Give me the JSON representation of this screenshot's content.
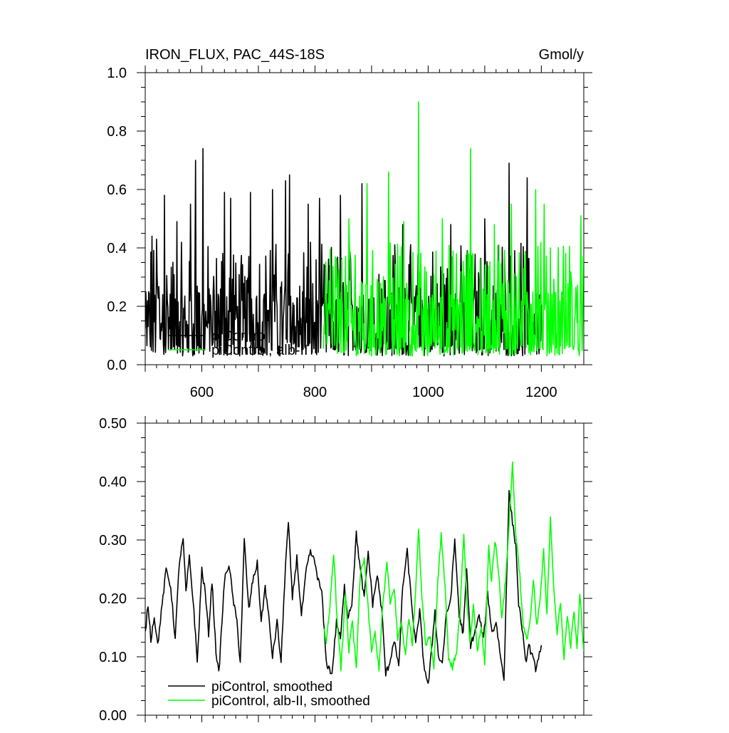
{
  "chart_data": [
    {
      "type": "line",
      "title": "IRON_FLUX, PAC_44S-18S",
      "units": "Gmol/y",
      "xlim": [
        500,
        1275
      ],
      "ylim": [
        0.0,
        1.0
      ],
      "x_ticks": [
        600,
        800,
        1000,
        1200
      ],
      "x_tick_labels": [
        "600",
        "800",
        "1000",
        "1200"
      ],
      "y_ticks": [
        0.0,
        0.2,
        0.4,
        0.6,
        0.8,
        1.0
      ],
      "y_tick_labels": [
        "0.0",
        "0.2",
        "0.4",
        "0.6",
        "0.8",
        "1.0"
      ],
      "grid": false,
      "legend_position": "bottom-left",
      "colors": {
        "piControl": "#000000",
        "alb-II": "#00ff00"
      },
      "series": [
        {
          "name": "piControl",
          "color": "#000000",
          "x_range": [
            500,
            1200
          ],
          "min": 0.03,
          "max": 0.74,
          "peaks": [
            {
              "x": 506,
              "y": 0.25
            },
            {
              "x": 512,
              "y": 0.44
            },
            {
              "x": 520,
              "y": 0.43
            },
            {
              "x": 534,
              "y": 0.58
            },
            {
              "x": 556,
              "y": 0.49
            },
            {
              "x": 580,
              "y": 0.55
            },
            {
              "x": 589,
              "y": 0.7
            },
            {
              "x": 602,
              "y": 0.74
            },
            {
              "x": 640,
              "y": 0.59
            },
            {
              "x": 651,
              "y": 0.57
            },
            {
              "x": 686,
              "y": 0.59
            },
            {
              "x": 725,
              "y": 0.6
            },
            {
              "x": 748,
              "y": 0.63
            },
            {
              "x": 755,
              "y": 0.65
            },
            {
              "x": 788,
              "y": 0.55
            },
            {
              "x": 808,
              "y": 0.57
            },
            {
              "x": 845,
              "y": 0.58
            },
            {
              "x": 883,
              "y": 0.62
            },
            {
              "x": 955,
              "y": 0.48
            },
            {
              "x": 1040,
              "y": 0.48
            },
            {
              "x": 1100,
              "y": 0.5
            },
            {
              "x": 1143,
              "y": 0.69
            },
            {
              "x": 1175,
              "y": 0.64
            }
          ]
        },
        {
          "name": "piControl, alb-II",
          "color": "#00ff00",
          "x_range": [
            815,
            1275
          ],
          "min": 0.03,
          "max": 0.9,
          "peaks": [
            {
              "x": 860,
              "y": 0.5
            },
            {
              "x": 892,
              "y": 0.62
            },
            {
              "x": 930,
              "y": 0.66
            },
            {
              "x": 957,
              "y": 0.49
            },
            {
              "x": 983,
              "y": 0.9
            },
            {
              "x": 1025,
              "y": 0.5
            },
            {
              "x": 1075,
              "y": 0.74
            },
            {
              "x": 1117,
              "y": 0.48
            },
            {
              "x": 1147,
              "y": 0.55
            },
            {
              "x": 1190,
              "y": 0.6
            },
            {
              "x": 1205,
              "y": 0.55
            },
            {
              "x": 1270,
              "y": 0.51
            }
          ]
        }
      ],
      "legend": [
        {
          "label": "piControl",
          "color": "#000000"
        },
        {
          "label": "piControl, alb-II",
          "color": "#00ff00"
        }
      ]
    },
    {
      "type": "line",
      "title": "",
      "xlim": [
        500,
        1275
      ],
      "ylim": [
        0.0,
        0.5
      ],
      "x_ticks": [
        600,
        800,
        1000,
        1200
      ],
      "y_ticks": [
        0.0,
        0.1,
        0.2,
        0.3,
        0.4,
        0.5
      ],
      "y_tick_labels": [
        "0.00",
        "0.10",
        "0.20",
        "0.30",
        "0.40",
        "0.50"
      ],
      "grid": false,
      "legend_position": "bottom-left",
      "series": [
        {
          "name": "piControl, smoothed",
          "color": "#000000",
          "anchors": [
            [
              500,
              0.14
            ],
            [
              505,
              0.19
            ],
            [
              510,
              0.13
            ],
            [
              516,
              0.17
            ],
            [
              522,
              0.12
            ],
            [
              530,
              0.19
            ],
            [
              537,
              0.25
            ],
            [
              545,
              0.22
            ],
            [
              553,
              0.13
            ],
            [
              560,
              0.26
            ],
            [
              567,
              0.3
            ],
            [
              572,
              0.21
            ],
            [
              578,
              0.27
            ],
            [
              586,
              0.18
            ],
            [
              592,
              0.09
            ],
            [
              600,
              0.25
            ],
            [
              606,
              0.21
            ],
            [
              612,
              0.14
            ],
            [
              618,
              0.23
            ],
            [
              625,
              0.11
            ],
            [
              630,
              0.07
            ],
            [
              640,
              0.23
            ],
            [
              648,
              0.26
            ],
            [
              655,
              0.2
            ],
            [
              662,
              0.16
            ],
            [
              668,
              0.09
            ],
            [
              675,
              0.3
            ],
            [
              683,
              0.18
            ],
            [
              690,
              0.23
            ],
            [
              698,
              0.26
            ],
            [
              705,
              0.16
            ],
            [
              712,
              0.22
            ],
            [
              718,
              0.17
            ],
            [
              725,
              0.1
            ],
            [
              733,
              0.16
            ],
            [
              740,
              0.09
            ],
            [
              748,
              0.26
            ],
            [
              753,
              0.33
            ],
            [
              760,
              0.2
            ],
            [
              768,
              0.27
            ],
            [
              776,
              0.17
            ],
            [
              785,
              0.25
            ],
            [
              792,
              0.28
            ],
            [
              800,
              0.26
            ],
            [
              806,
              0.23
            ],
            [
              812,
              0.21
            ],
            [
              820,
              0.09
            ],
            [
              830,
              0.07
            ],
            [
              838,
              0.16
            ],
            [
              845,
              0.13
            ],
            [
              852,
              0.22
            ],
            [
              858,
              0.17
            ],
            [
              865,
              0.19
            ],
            [
              873,
              0.31
            ],
            [
              880,
              0.25
            ],
            [
              887,
              0.2
            ],
            [
              894,
              0.28
            ],
            [
              902,
              0.19
            ],
            [
              910,
              0.24
            ],
            [
              918,
              0.18
            ],
            [
              925,
              0.07
            ],
            [
              932,
              0.09
            ],
            [
              940,
              0.13
            ],
            [
              948,
              0.08
            ],
            [
              955,
              0.22
            ],
            [
              963,
              0.28
            ],
            [
              970,
              0.2
            ],
            [
              978,
              0.12
            ],
            [
              985,
              0.18
            ],
            [
              992,
              0.09
            ],
            [
              1000,
              0.05
            ],
            [
              1006,
              0.11
            ],
            [
              1012,
              0.18
            ],
            [
              1018,
              0.1
            ],
            [
              1025,
              0.09
            ],
            [
              1032,
              0.17
            ],
            [
              1040,
              0.2
            ],
            [
              1047,
              0.3
            ],
            [
              1055,
              0.17
            ],
            [
              1062,
              0.14
            ],
            [
              1068,
              0.25
            ],
            [
              1075,
              0.12
            ],
            [
              1082,
              0.14
            ],
            [
              1090,
              0.17
            ],
            [
              1098,
              0.13
            ],
            [
              1105,
              0.21
            ],
            [
              1113,
              0.14
            ],
            [
              1120,
              0.16
            ],
            [
              1128,
              0.1
            ],
            [
              1134,
              0.06
            ],
            [
              1139,
              0.25
            ],
            [
              1143,
              0.38
            ],
            [
              1149,
              0.33
            ],
            [
              1155,
              0.29
            ],
            [
              1160,
              0.19
            ],
            [
              1166,
              0.15
            ],
            [
              1172,
              0.09
            ],
            [
              1178,
              0.12
            ],
            [
              1184,
              0.1
            ],
            [
              1190,
              0.08
            ],
            [
              1195,
              0.1
            ],
            [
              1200,
              0.12
            ]
          ]
        },
        {
          "name": "piControl, alb-II, smoothed",
          "color": "#00ff00",
          "anchors": [
            [
              815,
              0.15
            ],
            [
              820,
              0.12
            ],
            [
              826,
              0.18
            ],
            [
              833,
              0.28
            ],
            [
              840,
              0.15
            ],
            [
              846,
              0.08
            ],
            [
              854,
              0.21
            ],
            [
              860,
              0.11
            ],
            [
              866,
              0.16
            ],
            [
              873,
              0.08
            ],
            [
              880,
              0.24
            ],
            [
              887,
              0.27
            ],
            [
              894,
              0.18
            ],
            [
              900,
              0.11
            ],
            [
              906,
              0.14
            ],
            [
              913,
              0.08
            ],
            [
              920,
              0.19
            ],
            [
              927,
              0.26
            ],
            [
              933,
              0.19
            ],
            [
              940,
              0.22
            ],
            [
              946,
              0.13
            ],
            [
              953,
              0.16
            ],
            [
              960,
              0.1
            ],
            [
              966,
              0.17
            ],
            [
              972,
              0.12
            ],
            [
              978,
              0.22
            ],
            [
              983,
              0.32
            ],
            [
              989,
              0.2
            ],
            [
              996,
              0.12
            ],
            [
              1003,
              0.14
            ],
            [
              1010,
              0.08
            ],
            [
              1017,
              0.23
            ],
            [
              1023,
              0.31
            ],
            [
              1030,
              0.22
            ],
            [
              1036,
              0.1
            ],
            [
              1043,
              0.08
            ],
            [
              1050,
              0.11
            ],
            [
              1056,
              0.17
            ],
            [
              1063,
              0.31
            ],
            [
              1068,
              0.2
            ],
            [
              1074,
              0.12
            ],
            [
              1080,
              0.19
            ],
            [
              1087,
              0.11
            ],
            [
              1094,
              0.15
            ],
            [
              1100,
              0.09
            ],
            [
              1107,
              0.29
            ],
            [
              1112,
              0.23
            ],
            [
              1118,
              0.3
            ],
            [
              1124,
              0.25
            ],
            [
              1130,
              0.17
            ],
            [
              1137,
              0.23
            ],
            [
              1143,
              0.33
            ],
            [
              1149,
              0.43
            ],
            [
              1155,
              0.31
            ],
            [
              1162,
              0.24
            ],
            [
              1168,
              0.15
            ],
            [
              1174,
              0.13
            ],
            [
              1180,
              0.16
            ],
            [
              1186,
              0.23
            ],
            [
              1192,
              0.15
            ],
            [
              1198,
              0.2
            ],
            [
              1204,
              0.28
            ],
            [
              1210,
              0.17
            ],
            [
              1216,
              0.34
            ],
            [
              1222,
              0.22
            ],
            [
              1228,
              0.14
            ],
            [
              1234,
              0.19
            ],
            [
              1240,
              0.1
            ],
            [
              1246,
              0.17
            ],
            [
              1252,
              0.12
            ],
            [
              1258,
              0.18
            ],
            [
              1263,
              0.11
            ],
            [
              1268,
              0.21
            ],
            [
              1272,
              0.15
            ],
            [
              1275,
              0.11
            ]
          ]
        }
      ],
      "legend": [
        {
          "label": "piControl, smoothed",
          "color": "#000000"
        },
        {
          "label": "piControl, alb-II, smoothed",
          "color": "#00ff00"
        }
      ]
    }
  ]
}
